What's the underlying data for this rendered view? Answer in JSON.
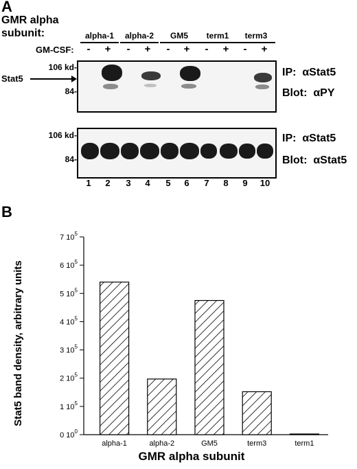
{
  "panelA": {
    "letter": "A",
    "header_line1": "GMR alpha",
    "header_line2": "subunit:",
    "gmcsf_label": "GM-CSF:",
    "groups": [
      {
        "label": "alpha-1"
      },
      {
        "label": "alpha-2"
      },
      {
        "label": "GM5"
      },
      {
        "label": "term1"
      },
      {
        "label": "term3"
      }
    ],
    "signs": [
      "-",
      "+",
      "-",
      "+",
      "-",
      "+",
      "-",
      "+",
      "-",
      "+"
    ],
    "stat5_label": "Stat5",
    "blot1": {
      "mw_top": "106 kd-",
      "mw_bottom": "84-",
      "ip_label": "IP:",
      "ip_value": "αStat5",
      "blot_label": "Blot:",
      "blot_value": "αPY"
    },
    "blot2": {
      "mw_top": "106 kd-",
      "mw_bottom": "84-",
      "ip_label": "IP:",
      "ip_value": "αStat5",
      "blot_label": "Blot:",
      "blot_value": "αStat5"
    },
    "lanes": [
      "1",
      "2",
      "3",
      "4",
      "5",
      "6",
      "7",
      "8",
      "9",
      "10"
    ]
  },
  "panelB": {
    "letter": "B"
  },
  "chart_data": {
    "type": "bar",
    "categories": [
      "alpha-1",
      "alpha-2",
      "GM5",
      "term3",
      "term1"
    ],
    "values": [
      540000,
      197000,
      475000,
      152000,
      2000
    ],
    "title": "",
    "xlabel": "GMR alpha subunit",
    "ylabel": "Stat5 band density, arbitrary units",
    "ylim": [
      0,
      700000
    ],
    "yticks": [
      {
        "value": 0,
        "mant": "0",
        "exp": "0"
      },
      {
        "value": 100000,
        "mant": "1",
        "exp": "5"
      },
      {
        "value": 200000,
        "mant": "2",
        "exp": "5"
      },
      {
        "value": 300000,
        "mant": "3",
        "exp": "5"
      },
      {
        "value": 400000,
        "mant": "4",
        "exp": "5"
      },
      {
        "value": 500000,
        "mant": "5",
        "exp": "5"
      },
      {
        "value": 600000,
        "mant": "6",
        "exp": "5"
      },
      {
        "value": 700000,
        "mant": "7",
        "exp": "5"
      }
    ],
    "ytick_base": "10",
    "fill": "hatched",
    "grid": false
  }
}
